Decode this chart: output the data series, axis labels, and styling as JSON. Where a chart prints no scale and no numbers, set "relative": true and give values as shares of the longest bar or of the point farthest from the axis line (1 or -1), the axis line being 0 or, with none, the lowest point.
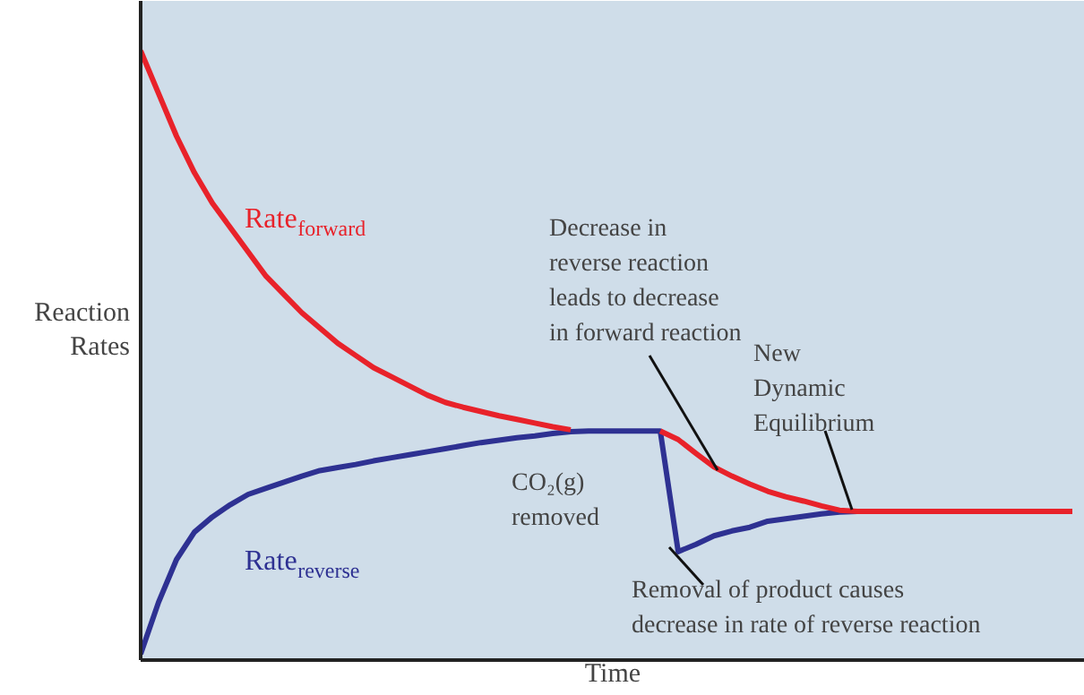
{
  "chart_data": {
    "type": "line",
    "relative": true,
    "xlabel": "Time",
    "ylabel": "Reaction\nRates",
    "line_style": "solid",
    "categories": [
      null,
      null,
      null,
      null,
      null,
      null,
      null,
      null,
      null,
      null,
      null,
      null,
      null,
      null,
      null,
      null,
      null,
      null,
      null,
      null,
      null,
      null,
      null,
      null,
      null,
      null,
      null,
      null,
      null,
      null,
      null,
      null,
      null,
      null,
      null,
      null,
      null,
      null,
      null,
      null,
      null,
      null,
      null,
      null,
      null,
      null,
      null,
      null,
      null,
      null,
      null,
      null,
      null
    ],
    "series": [
      {
        "name": "Rate$_{forward}$",
        "color": "#e8222a",
        "values": [
          1.0,
          0.93,
          0.86,
          0.8,
          0.75,
          0.71,
          0.67,
          0.63,
          0.6,
          0.57,
          0.545,
          0.52,
          0.5,
          0.48,
          0.465,
          0.45,
          0.435,
          0.423,
          0.415,
          0.408,
          0.401,
          0.395,
          0.389,
          0.383,
          0.378,
          null,
          null,
          null,
          null,
          0.376,
          0.362,
          0.339,
          0.317,
          0.302,
          0.289,
          0.277,
          0.268,
          0.261,
          0.253,
          0.246,
          0.244,
          0.244,
          0.244,
          0.244,
          0.244,
          0.244,
          0.244,
          0.244,
          0.244,
          0.244,
          0.244,
          0.244,
          0.244
        ]
      },
      {
        "name": "Rate$_{reverse}$",
        "color": "#2e3192",
        "values": [
          0.01,
          0.095,
          0.165,
          0.21,
          0.235,
          0.255,
          0.272,
          0.282,
          0.292,
          0.302,
          0.311,
          0.316,
          0.321,
          0.327,
          0.332,
          0.337,
          0.342,
          0.347,
          0.352,
          0.357,
          0.361,
          0.365,
          0.368,
          0.372,
          0.375,
          0.376,
          0.376,
          0.376,
          0.376,
          0.376,
          0.178,
          0.19,
          0.204,
          0.212,
          0.218,
          0.228,
          0.232,
          0.236,
          0.24,
          0.243,
          0.244,
          null,
          null,
          null,
          null,
          null,
          null,
          null,
          null,
          null,
          null,
          null,
          null
        ]
      }
    ],
    "annotations": [
      "Decrease in\nreverse reaction\nleads to decrease\nin forward reaction",
      "New\nDynamic\nEquilibrium",
      "CO₂(g)\nremoved",
      "Removal of product causes\ndecrease in rate of reverse reaction"
    ]
  }
}
